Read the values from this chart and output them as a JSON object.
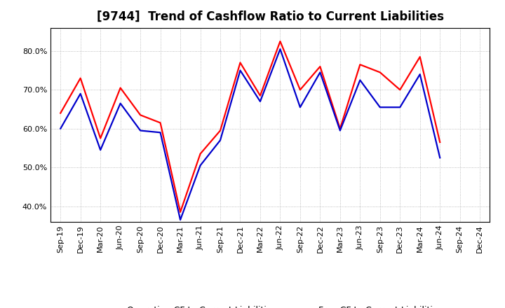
{
  "title": "[9744]  Trend of Cashflow Ratio to Current Liabilities",
  "x_labels": [
    "Sep-19",
    "Dec-19",
    "Mar-20",
    "Jun-20",
    "Sep-20",
    "Dec-20",
    "Mar-21",
    "Jun-21",
    "Sep-21",
    "Dec-21",
    "Mar-22",
    "Jun-22",
    "Sep-22",
    "Dec-22",
    "Mar-23",
    "Jun-23",
    "Sep-23",
    "Dec-23",
    "Mar-24",
    "Jun-24",
    "Sep-24",
    "Dec-24"
  ],
  "operating_cf": [
    64.0,
    73.0,
    57.5,
    70.5,
    63.5,
    61.5,
    38.5,
    53.5,
    59.5,
    77.0,
    68.5,
    82.5,
    70.0,
    76.0,
    60.0,
    76.5,
    74.5,
    70.0,
    78.5,
    56.5,
    null,
    null
  ],
  "free_cf": [
    60.0,
    69.0,
    54.5,
    66.5,
    59.5,
    59.0,
    36.5,
    50.5,
    57.0,
    75.0,
    67.0,
    80.5,
    65.5,
    74.5,
    59.5,
    72.5,
    65.5,
    65.5,
    74.0,
    52.5,
    null,
    null
  ],
  "ylim": [
    36.0,
    86.0
  ],
  "yticks": [
    40.0,
    50.0,
    60.0,
    70.0,
    80.0
  ],
  "operating_color": "#ff0000",
  "free_color": "#0000cc",
  "grid_color": "#aaaaaa",
  "background_color": "#ffffff",
  "legend_op": "Operating CF to Current Liabilities",
  "legend_free": "Free CF to Current Liabilities",
  "title_fontsize": 12,
  "tick_fontsize": 8,
  "legend_fontsize": 9
}
